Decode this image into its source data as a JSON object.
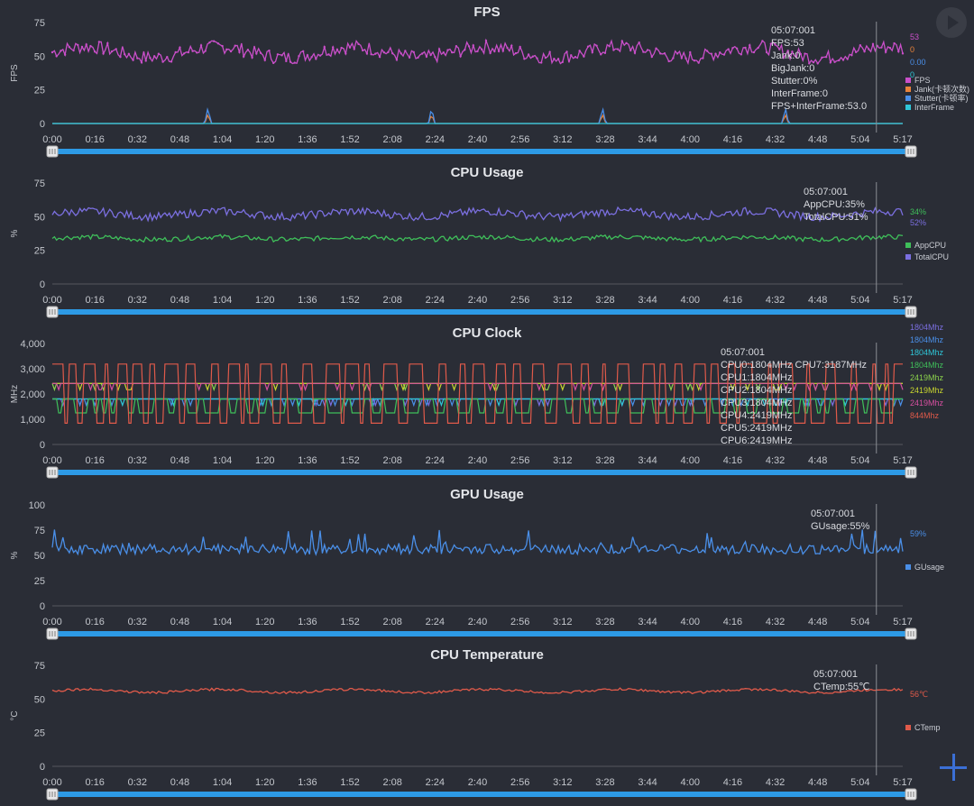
{
  "chart_data": [
    {
      "type": "line",
      "title": "FPS",
      "ylabel": "FPS",
      "ylim": [
        0,
        75
      ],
      "yticks": [
        "0",
        "25",
        "50",
        "75"
      ],
      "series": [
        {
          "name": "FPS",
          "color": "#c94fc9",
          "base": 53,
          "noise": 5,
          "wave": 4,
          "last_value": "53"
        },
        {
          "name": "Jank(卡顿次数)",
          "color": "#e8833a",
          "base": 0,
          "spikes": [
            [
              0.183,
              7
            ],
            [
              0.446,
              7
            ],
            [
              0.647,
              7
            ],
            [
              0.862,
              7
            ]
          ],
          "last_value": "0"
        },
        {
          "name": "Stutter(卡顿率)",
          "color": "#4a8fe8",
          "base": 0,
          "spikes": [
            [
              0.183,
              12
            ],
            [
              0.446,
              12
            ],
            [
              0.647,
              12
            ],
            [
              0.862,
              12
            ]
          ],
          "last_value": "0.00"
        },
        {
          "name": "InterFrame",
          "color": "#2fc6d8",
          "base": 0,
          "last_value": "0"
        }
      ],
      "tooltip": [
        "05:07:001",
        "FPS:53",
        "Jank:0",
        "BigJank:0",
        "Stutter:0%",
        "InterFrame:0",
        "FPS+InterFrame:53.0"
      ]
    },
    {
      "type": "line",
      "title": "CPU Usage",
      "ylabel": "%",
      "ylim": [
        0,
        75
      ],
      "yticks": [
        "0",
        "25",
        "50",
        "75"
      ],
      "series": [
        {
          "name": "AppCPU",
          "color": "#3fbf5a",
          "base": 34,
          "noise": 1.8,
          "wave": 1,
          "last_value": "34%"
        },
        {
          "name": "TotalCPU",
          "color": "#7b6fe0",
          "base": 52,
          "noise": 3,
          "wave": 2,
          "last_value": "52%"
        }
      ],
      "tooltip": [
        "05:07:001",
        "AppCPU:35%",
        "TotalCPU:51%"
      ]
    },
    {
      "type": "line",
      "title": "CPU Clock",
      "ylabel": "MHz",
      "ylim": [
        0,
        4000
      ],
      "yticks": [
        "0",
        "1,000",
        "2,000",
        "3,000",
        "4,000"
      ],
      "series": [
        {
          "name": "CPU0",
          "color": "#7b6fe0",
          "square": [
            1804,
            1804
          ],
          "last_value": "1804Mhz"
        },
        {
          "name": "CPU1",
          "color": "#4a8fe8",
          "square": [
            1804,
            1804
          ],
          "last_value": "1804Mhz"
        },
        {
          "name": "CPU2",
          "color": "#2fc6d8",
          "square": [
            1804,
            1804
          ],
          "last_value": "1804Mhz"
        },
        {
          "name": "CPU3",
          "color": "#3fbf5a",
          "square": [
            1804,
            1250
          ],
          "last_value": "1804Mhz"
        },
        {
          "name": "CPU4",
          "color": "#8bd24c",
          "square": [
            2419,
            2419
          ],
          "last_value": "2419Mhz"
        },
        {
          "name": "CPU5",
          "color": "#c9d62f",
          "square": [
            2419,
            2419
          ],
          "last_value": "2419Mhz"
        },
        {
          "name": "CPU6",
          "color": "#d64fa0",
          "square": [
            2419,
            2419
          ],
          "last_value": "2419Mhz"
        },
        {
          "name": "CPU7",
          "color": "#e05a4a",
          "square": [
            3187,
            844
          ],
          "last_value": "844Mhz"
        }
      ],
      "tooltip": [
        "05:07:001",
        "CPU0:1804MHz CPU7:3187MHz",
        "CPU1:1804MHz",
        "CPU2:1804MHz",
        "CPU3:1804MHz",
        "CPU4:2419MHz",
        "CPU5:2419MHz",
        "CPU6:2419MHz"
      ]
    },
    {
      "type": "line",
      "title": "GPU Usage",
      "ylabel": "%",
      "ylim": [
        0,
        100
      ],
      "yticks": [
        "0",
        "25",
        "50",
        "75",
        "100"
      ],
      "series": [
        {
          "name": "GUsage",
          "color": "#4a8fe8",
          "base": 56,
          "noise": 5,
          "spike": 22,
          "last_value": "59%"
        }
      ],
      "tooltip": [
        "05:07:001",
        "GUsage:55%"
      ]
    },
    {
      "type": "line",
      "title": "CPU Temperature",
      "ylabel": "°C",
      "ylim": [
        0,
        75
      ],
      "yticks": [
        "0",
        "25",
        "50",
        "75"
      ],
      "series": [
        {
          "name": "CTemp",
          "color": "#e05a4a",
          "base": 56,
          "noise": 0.9,
          "wave": 1.2,
          "last_value": "56℃"
        }
      ],
      "tooltip": [
        "05:07:001",
        "CTemp:55℃"
      ]
    }
  ],
  "xticks": [
    "0:00",
    "0:16",
    "0:32",
    "0:48",
    "1:04",
    "1:20",
    "1:36",
    "1:52",
    "2:08",
    "2:24",
    "2:40",
    "2:56",
    "3:12",
    "3:28",
    "3:44",
    "4:00",
    "4:16",
    "4:32",
    "4:48",
    "5:04",
    "5:17"
  ],
  "cursor": "05:07:001",
  "controls": {
    "play": "play-icon",
    "add": "plus-icon"
  },
  "colors": {
    "background": "#2a2d36",
    "slider": "#2d9ae6",
    "cursor": "#8a8d94"
  }
}
